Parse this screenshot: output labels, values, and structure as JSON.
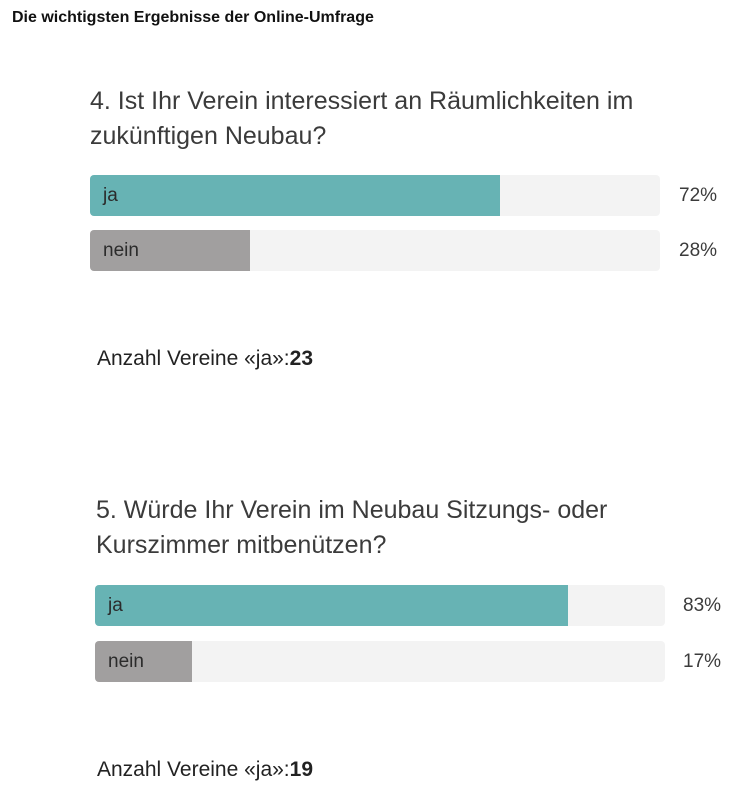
{
  "header": "Die wichtigsten Ergebnisse der Online-Umfrage",
  "chart_data": [
    {
      "type": "bar",
      "title": "4. Ist Ihr Verein interessiert an Räumlichkeiten im zukünftigen Neubau?",
      "categories": [
        "ja",
        "nein"
      ],
      "values": [
        72,
        28
      ],
      "value_labels": [
        "72%",
        "28%"
      ],
      "ylim": [
        0,
        100
      ],
      "colors": [
        "#67b3b4",
        "#a19f9f"
      ],
      "count_label": "Anzahl Vereine «ja»:",
      "count_value": "23"
    },
    {
      "type": "bar",
      "title": "5. Würde Ihr Verein im Neubau Sitzungs- oder Kurszimmer mitbenützen?",
      "categories": [
        "ja",
        "nein"
      ],
      "values": [
        83,
        17
      ],
      "value_labels": [
        "83%",
        "17%"
      ],
      "ylim": [
        0,
        100
      ],
      "colors": [
        "#67b3b4",
        "#a19f9f"
      ],
      "count_label": "Anzahl Vereine «ja»:",
      "count_value": "19"
    }
  ]
}
